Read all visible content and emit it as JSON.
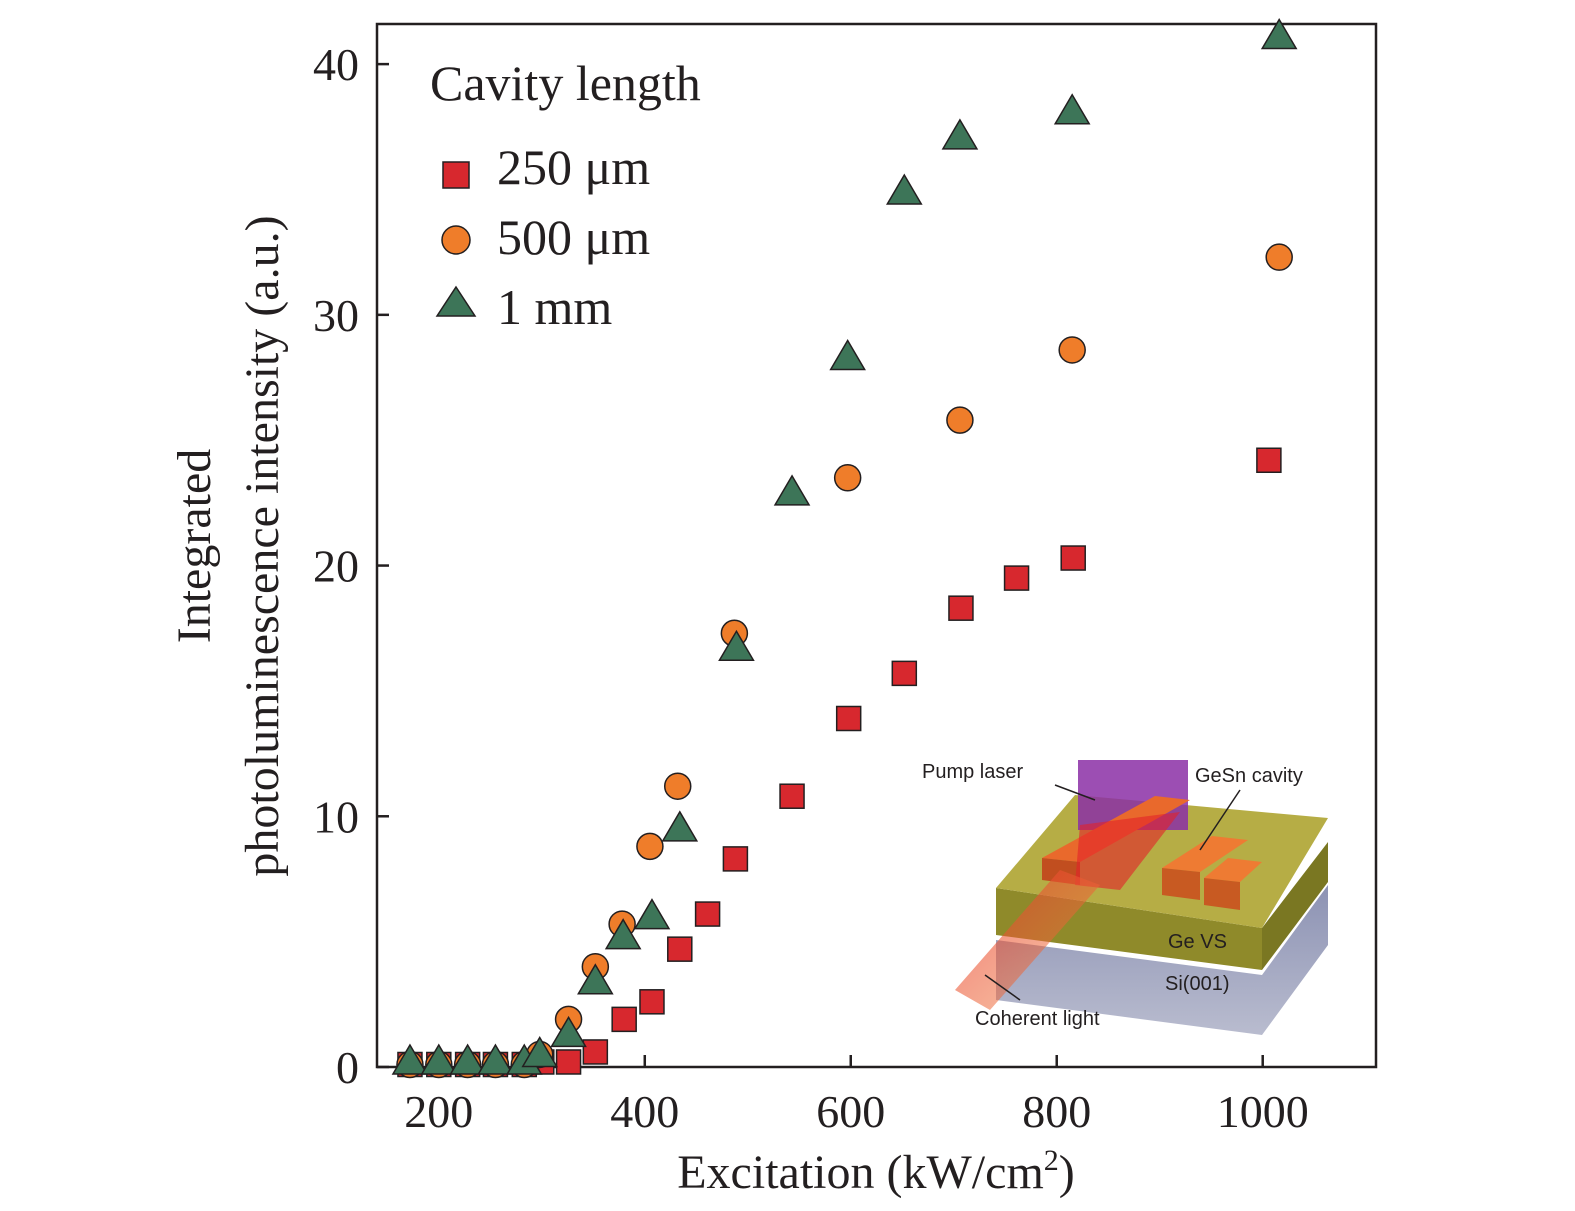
{
  "chart_data": {
    "type": "scatter",
    "xlabel": "Excitation (kW/cm",
    "xlabel_sup": "2",
    "xlabel_end": ")",
    "ylabel_lines": [
      "Integrated",
      "photoluminescence intensity (a.u.)"
    ],
    "xlim": [
      140,
      1110
    ],
    "ylim": [
      0,
      41.6
    ],
    "x_ticks": [
      200,
      400,
      600,
      800,
      1000
    ],
    "y_ticks": [
      0,
      10,
      20,
      30,
      40
    ],
    "grid": false,
    "legend": {
      "title": "Cavity length",
      "placement": "top-left"
    },
    "series": [
      {
        "name": "250 μm",
        "marker": "square",
        "color": "#d7282e",
        "points": [
          [
            172,
            0.1
          ],
          [
            200,
            0.1
          ],
          [
            228,
            0.1
          ],
          [
            255,
            0.1
          ],
          [
            283,
            0.1
          ],
          [
            300,
            0.2
          ],
          [
            326,
            0.2
          ],
          [
            352,
            0.6
          ],
          [
            380,
            1.9
          ],
          [
            407,
            2.6
          ],
          [
            434,
            4.7
          ],
          [
            461,
            6.1
          ],
          [
            488,
            8.3
          ],
          [
            543,
            10.8
          ],
          [
            598,
            13.9
          ],
          [
            652,
            15.7
          ],
          [
            707,
            18.3
          ],
          [
            761,
            19.5
          ],
          [
            816,
            20.3
          ],
          [
            1006,
            24.2
          ]
        ]
      },
      {
        "name": "500 μm",
        "marker": "circle",
        "color": "#ef7d2a",
        "points": [
          [
            172,
            0.1
          ],
          [
            200,
            0.1
          ],
          [
            228,
            0.1
          ],
          [
            255,
            0.1
          ],
          [
            283,
            0.1
          ],
          [
            298,
            0.5
          ],
          [
            326,
            1.9
          ],
          [
            352,
            4.0
          ],
          [
            378,
            5.7
          ],
          [
            405,
            8.8
          ],
          [
            432,
            11.2
          ],
          [
            487,
            17.3
          ],
          [
            597,
            23.5
          ],
          [
            706,
            25.8
          ],
          [
            815,
            28.6
          ],
          [
            1016,
            32.3
          ]
        ]
      },
      {
        "name": "1 mm",
        "marker": "triangle",
        "color": "#3d7558",
        "points": [
          [
            172,
            0.2
          ],
          [
            200,
            0.2
          ],
          [
            228,
            0.2
          ],
          [
            255,
            0.2
          ],
          [
            283,
            0.2
          ],
          [
            298,
            0.5
          ],
          [
            326,
            1.3
          ],
          [
            352,
            3.4
          ],
          [
            379,
            5.2
          ],
          [
            407,
            6.0
          ],
          [
            434,
            9.5
          ],
          [
            489,
            16.7
          ],
          [
            543,
            22.9
          ],
          [
            597,
            28.3
          ],
          [
            652,
            34.9
          ],
          [
            706,
            37.1
          ],
          [
            815,
            38.1
          ],
          [
            1016,
            41.1
          ]
        ]
      }
    ],
    "inset": {
      "labels": [
        "Pump laser",
        "GeSn cavity",
        "Ge VS",
        "Si(001)",
        "Coherent light"
      ]
    }
  }
}
